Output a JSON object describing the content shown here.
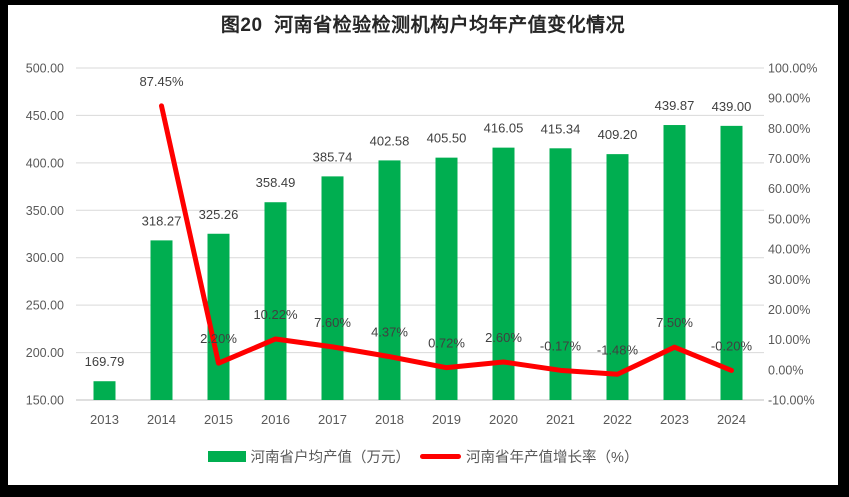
{
  "chart_data": {
    "type": "combo_bar_line",
    "title": "图20  河南省检验检测机构户均年产值变化情况",
    "categories": [
      "2013",
      "2014",
      "2015",
      "2016",
      "2017",
      "2018",
      "2019",
      "2020",
      "2021",
      "2022",
      "2023",
      "2024"
    ],
    "series": [
      {
        "name": "河南省户均产值（万元）",
        "type": "bar",
        "axis": "left",
        "color": "#00AE50",
        "values": [
          169.79,
          318.27,
          325.26,
          358.49,
          385.74,
          402.58,
          405.5,
          416.05,
          415.34,
          409.2,
          439.87,
          439.0
        ],
        "labels": [
          "169.79",
          "318.27",
          "325.26",
          "358.49",
          "385.74",
          "402.58",
          "405.50",
          "416.05",
          "415.34",
          "409.20",
          "439.87",
          "439.00"
        ]
      },
      {
        "name": "河南省年产值增长率（%）",
        "type": "line",
        "axis": "right",
        "color": "#FF0000",
        "values": [
          null,
          87.45,
          2.2,
          10.22,
          7.6,
          4.37,
          0.72,
          2.6,
          -0.17,
          -1.48,
          7.5,
          -0.2
        ],
        "labels": [
          null,
          "87.45%",
          "2.20%",
          "10.22%",
          "7.60%",
          "4.37%",
          "0.72%",
          "2.60%",
          "-0.17%",
          "-1.48%",
          "7.50%",
          "-0.20%"
        ]
      }
    ],
    "left_axis": {
      "min": 150,
      "max": 500,
      "step": 50,
      "tick_labels": [
        "150.00",
        "200.00",
        "250.00",
        "300.00",
        "350.00",
        "400.00",
        "450.00",
        "500.00"
      ]
    },
    "right_axis": {
      "min": -10,
      "max": 100,
      "step": 10,
      "tick_labels": [
        "-10.00%",
        "0.00%",
        "10.00%",
        "20.00%",
        "30.00%",
        "40.00%",
        "50.00%",
        "60.00%",
        "70.00%",
        "80.00%",
        "90.00%",
        "100.00%"
      ]
    },
    "grid": true,
    "legend_position": "bottom"
  },
  "style": {
    "background": "#FFFFFF",
    "frame_color": "#000000",
    "grid_color": "#D9D9D9",
    "axis_line_color": "#BFBFBF",
    "tick_label_color": "#595959",
    "data_label_color": "#404040",
    "title_color": "#262626"
  }
}
